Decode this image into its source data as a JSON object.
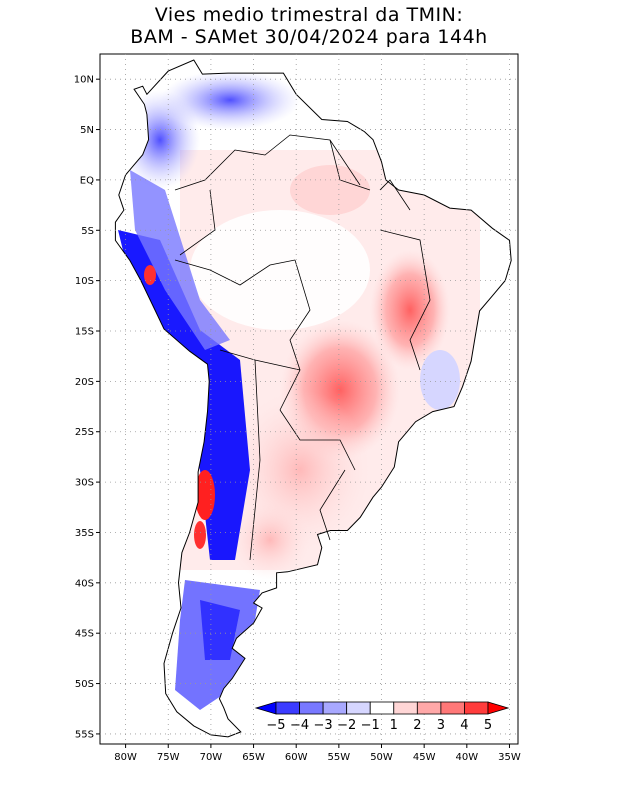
{
  "title": {
    "line1": "Vies medio trimestral da TMIN:",
    "line2": "BAM - SAMet 30/04/2024  para 144h"
  },
  "map": {
    "lon_ticks": [
      "80W",
      "75W",
      "70W",
      "65W",
      "60W",
      "55W",
      "50W",
      "45W",
      "40W",
      "35W"
    ],
    "lat_ticks": [
      "10N",
      "5N",
      "EQ",
      "5S",
      "10S",
      "15S",
      "20S",
      "25S",
      "30S",
      "35S",
      "40S",
      "45S",
      "50S",
      "55S"
    ],
    "lon_range": [
      -83,
      -34
    ],
    "lat_range": [
      12.5,
      -56
    ],
    "grid": true,
    "grid_style": "dotted"
  },
  "colorbar": {
    "labels": [
      "-5",
      "-4",
      "-3",
      "-2",
      "-1",
      "1",
      "2",
      "3",
      "4",
      "5"
    ],
    "colors": [
      "#0000ff",
      "#3c3cff",
      "#7878ff",
      "#a8a8ff",
      "#d6d6ff",
      "#ffffff",
      "#ffd6d6",
      "#ffa8a8",
      "#ff7878",
      "#ff3c3c",
      "#ff0000"
    ],
    "placement": "bottom-right inside map"
  }
}
